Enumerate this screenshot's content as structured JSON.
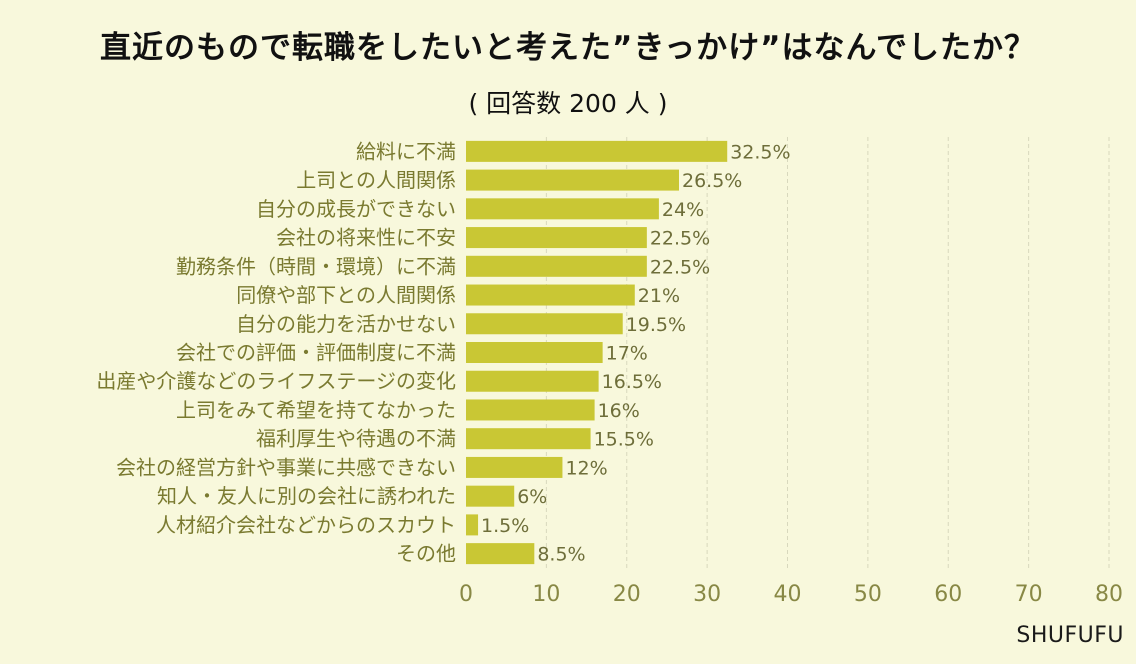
{
  "chart_data": {
    "type": "bar",
    "orientation": "horizontal",
    "title": "直近のもので転職をしたいと考えた”きっかけ”はなんでしたか？",
    "subtitle": "( 回答数 200 人 )",
    "categories": [
      "給料に不満",
      "上司との人間関係",
      "自分の成長ができない",
      "会社の将来性に不安",
      "勤務条件（時間・環境）に不満",
      "同僚や部下との人間関係",
      "自分の能力を活かせない",
      "会社での評価・評価制度に不満",
      "出産や介護などのライフステージの変化",
      "上司をみて希望を持てなかった",
      "福利厚生や待遇の不満",
      "会社の経営方針や事業に共感できない",
      "知人・友人に別の会社に誘われた",
      "人材紹介会社などからのスカウト",
      "その他"
    ],
    "values": [
      32.5,
      26.5,
      24,
      22.5,
      22.5,
      21,
      19.5,
      17,
      16.5,
      16,
      15.5,
      12,
      6,
      1.5,
      8.5
    ],
    "value_labels": [
      "32.5%",
      "26.5%",
      "24%",
      "22.5%",
      "22.5%",
      "21%",
      "19.5%",
      "17%",
      "16.5%",
      "16%",
      "15.5%",
      "12%",
      "6%",
      "1.5%",
      "8.5%"
    ],
    "xticks": [
      0,
      10,
      20,
      30,
      40,
      50,
      60,
      70,
      80
    ],
    "xlim": [
      0,
      80
    ],
    "grid": true,
    "xlabel": "",
    "ylabel": "",
    "bar_color": "#c9c734",
    "category_label_color": "#7a7a30",
    "value_label_color": "#6e6e3a",
    "tick_label_color": "#888845",
    "grid_color": "#d8d8bd"
  },
  "watermark": "SHUFUFU"
}
